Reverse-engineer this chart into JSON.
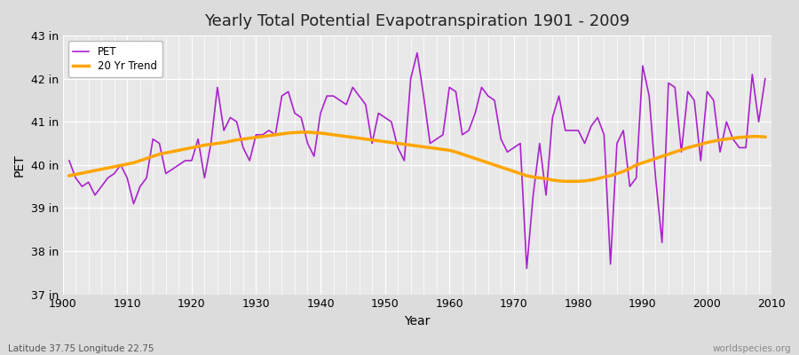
{
  "title": "Yearly Total Potential Evapotranspiration 1901 - 2009",
  "xlabel": "Year",
  "ylabel": "PET",
  "subtitle_left": "Latitude 37.75 Longitude 22.75",
  "subtitle_right": "worldspecies.org",
  "pet_color": "#AA22CC",
  "trend_color": "#FFA500",
  "fig_bg_color": "#DCDCDC",
  "plot_bg_color": "#E8E8E8",
  "ylim": [
    37,
    43
  ],
  "yticks": [
    37,
    38,
    39,
    40,
    41,
    42,
    43
  ],
  "ytick_labels": [
    "37 in",
    "38 in",
    "39 in",
    "40 in",
    "41 in",
    "42 in",
    "43 in"
  ],
  "years": [
    1901,
    1902,
    1903,
    1904,
    1905,
    1906,
    1907,
    1908,
    1909,
    1910,
    1911,
    1912,
    1913,
    1914,
    1915,
    1916,
    1917,
    1918,
    1919,
    1920,
    1921,
    1922,
    1923,
    1924,
    1925,
    1926,
    1927,
    1928,
    1929,
    1930,
    1931,
    1932,
    1933,
    1934,
    1935,
    1936,
    1937,
    1938,
    1939,
    1940,
    1941,
    1942,
    1943,
    1944,
    1945,
    1946,
    1947,
    1948,
    1949,
    1950,
    1951,
    1952,
    1953,
    1954,
    1955,
    1956,
    1957,
    1958,
    1959,
    1960,
    1961,
    1962,
    1963,
    1964,
    1965,
    1966,
    1967,
    1968,
    1969,
    1970,
    1971,
    1972,
    1973,
    1974,
    1975,
    1976,
    1977,
    1978,
    1979,
    1980,
    1981,
    1982,
    1983,
    1984,
    1985,
    1986,
    1987,
    1988,
    1989,
    1990,
    1991,
    1992,
    1993,
    1994,
    1995,
    1996,
    1997,
    1998,
    1999,
    2000,
    2001,
    2002,
    2003,
    2004,
    2005,
    2006,
    2007,
    2008,
    2009
  ],
  "pet": [
    40.1,
    39.7,
    39.5,
    39.6,
    39.3,
    39.5,
    39.7,
    39.8,
    40.0,
    39.7,
    39.1,
    39.5,
    39.7,
    40.6,
    40.5,
    39.8,
    39.9,
    40.0,
    40.1,
    40.1,
    40.6,
    39.7,
    40.5,
    41.8,
    40.8,
    41.1,
    41.0,
    40.4,
    40.1,
    40.7,
    40.7,
    40.8,
    40.7,
    41.6,
    41.7,
    41.2,
    41.1,
    40.5,
    40.2,
    41.2,
    41.6,
    41.6,
    41.5,
    41.4,
    41.8,
    41.6,
    41.4,
    40.5,
    41.2,
    41.1,
    41.0,
    40.4,
    40.1,
    42.0,
    42.6,
    41.6,
    40.5,
    40.6,
    40.7,
    41.8,
    41.7,
    40.7,
    40.8,
    41.2,
    41.8,
    41.6,
    41.5,
    40.6,
    40.3,
    40.4,
    40.5,
    37.6,
    39.3,
    40.5,
    39.3,
    41.1,
    41.6,
    40.8,
    40.8,
    40.8,
    40.5,
    40.9,
    41.1,
    40.7,
    37.7,
    40.5,
    40.8,
    39.5,
    39.7,
    42.3,
    41.6,
    39.7,
    38.2,
    41.9,
    41.8,
    40.3,
    41.7,
    41.5,
    40.1,
    41.7,
    41.5,
    40.3,
    41.0,
    40.6,
    40.4,
    40.4,
    42.1,
    41.0,
    42.0
  ],
  "trend": [
    39.75,
    39.78,
    39.81,
    39.84,
    39.87,
    39.9,
    39.93,
    39.96,
    39.99,
    40.02,
    40.05,
    40.1,
    40.15,
    40.2,
    40.25,
    40.28,
    40.31,
    40.34,
    40.37,
    40.4,
    40.43,
    40.46,
    40.48,
    40.5,
    40.52,
    40.55,
    40.58,
    40.6,
    40.62,
    40.64,
    40.66,
    40.68,
    40.7,
    40.72,
    40.74,
    40.75,
    40.76,
    40.76,
    40.75,
    40.74,
    40.72,
    40.7,
    40.68,
    40.66,
    40.64,
    40.62,
    40.6,
    40.58,
    40.56,
    40.54,
    40.52,
    40.5,
    40.48,
    40.46,
    40.44,
    40.42,
    40.4,
    40.38,
    40.36,
    40.34,
    40.3,
    40.25,
    40.2,
    40.15,
    40.1,
    40.05,
    40.0,
    39.95,
    39.9,
    39.85,
    39.8,
    39.75,
    39.72,
    39.7,
    39.68,
    39.65,
    39.63,
    39.62,
    39.62,
    39.62,
    39.63,
    39.65,
    39.68,
    39.72,
    39.75,
    39.8,
    39.85,
    39.92,
    40.0,
    40.05,
    40.1,
    40.15,
    40.2,
    40.25,
    40.3,
    40.35,
    40.4,
    40.44,
    40.48,
    40.52,
    40.55,
    40.58,
    40.6,
    40.62,
    40.64,
    40.65,
    40.66,
    40.66,
    40.65
  ]
}
